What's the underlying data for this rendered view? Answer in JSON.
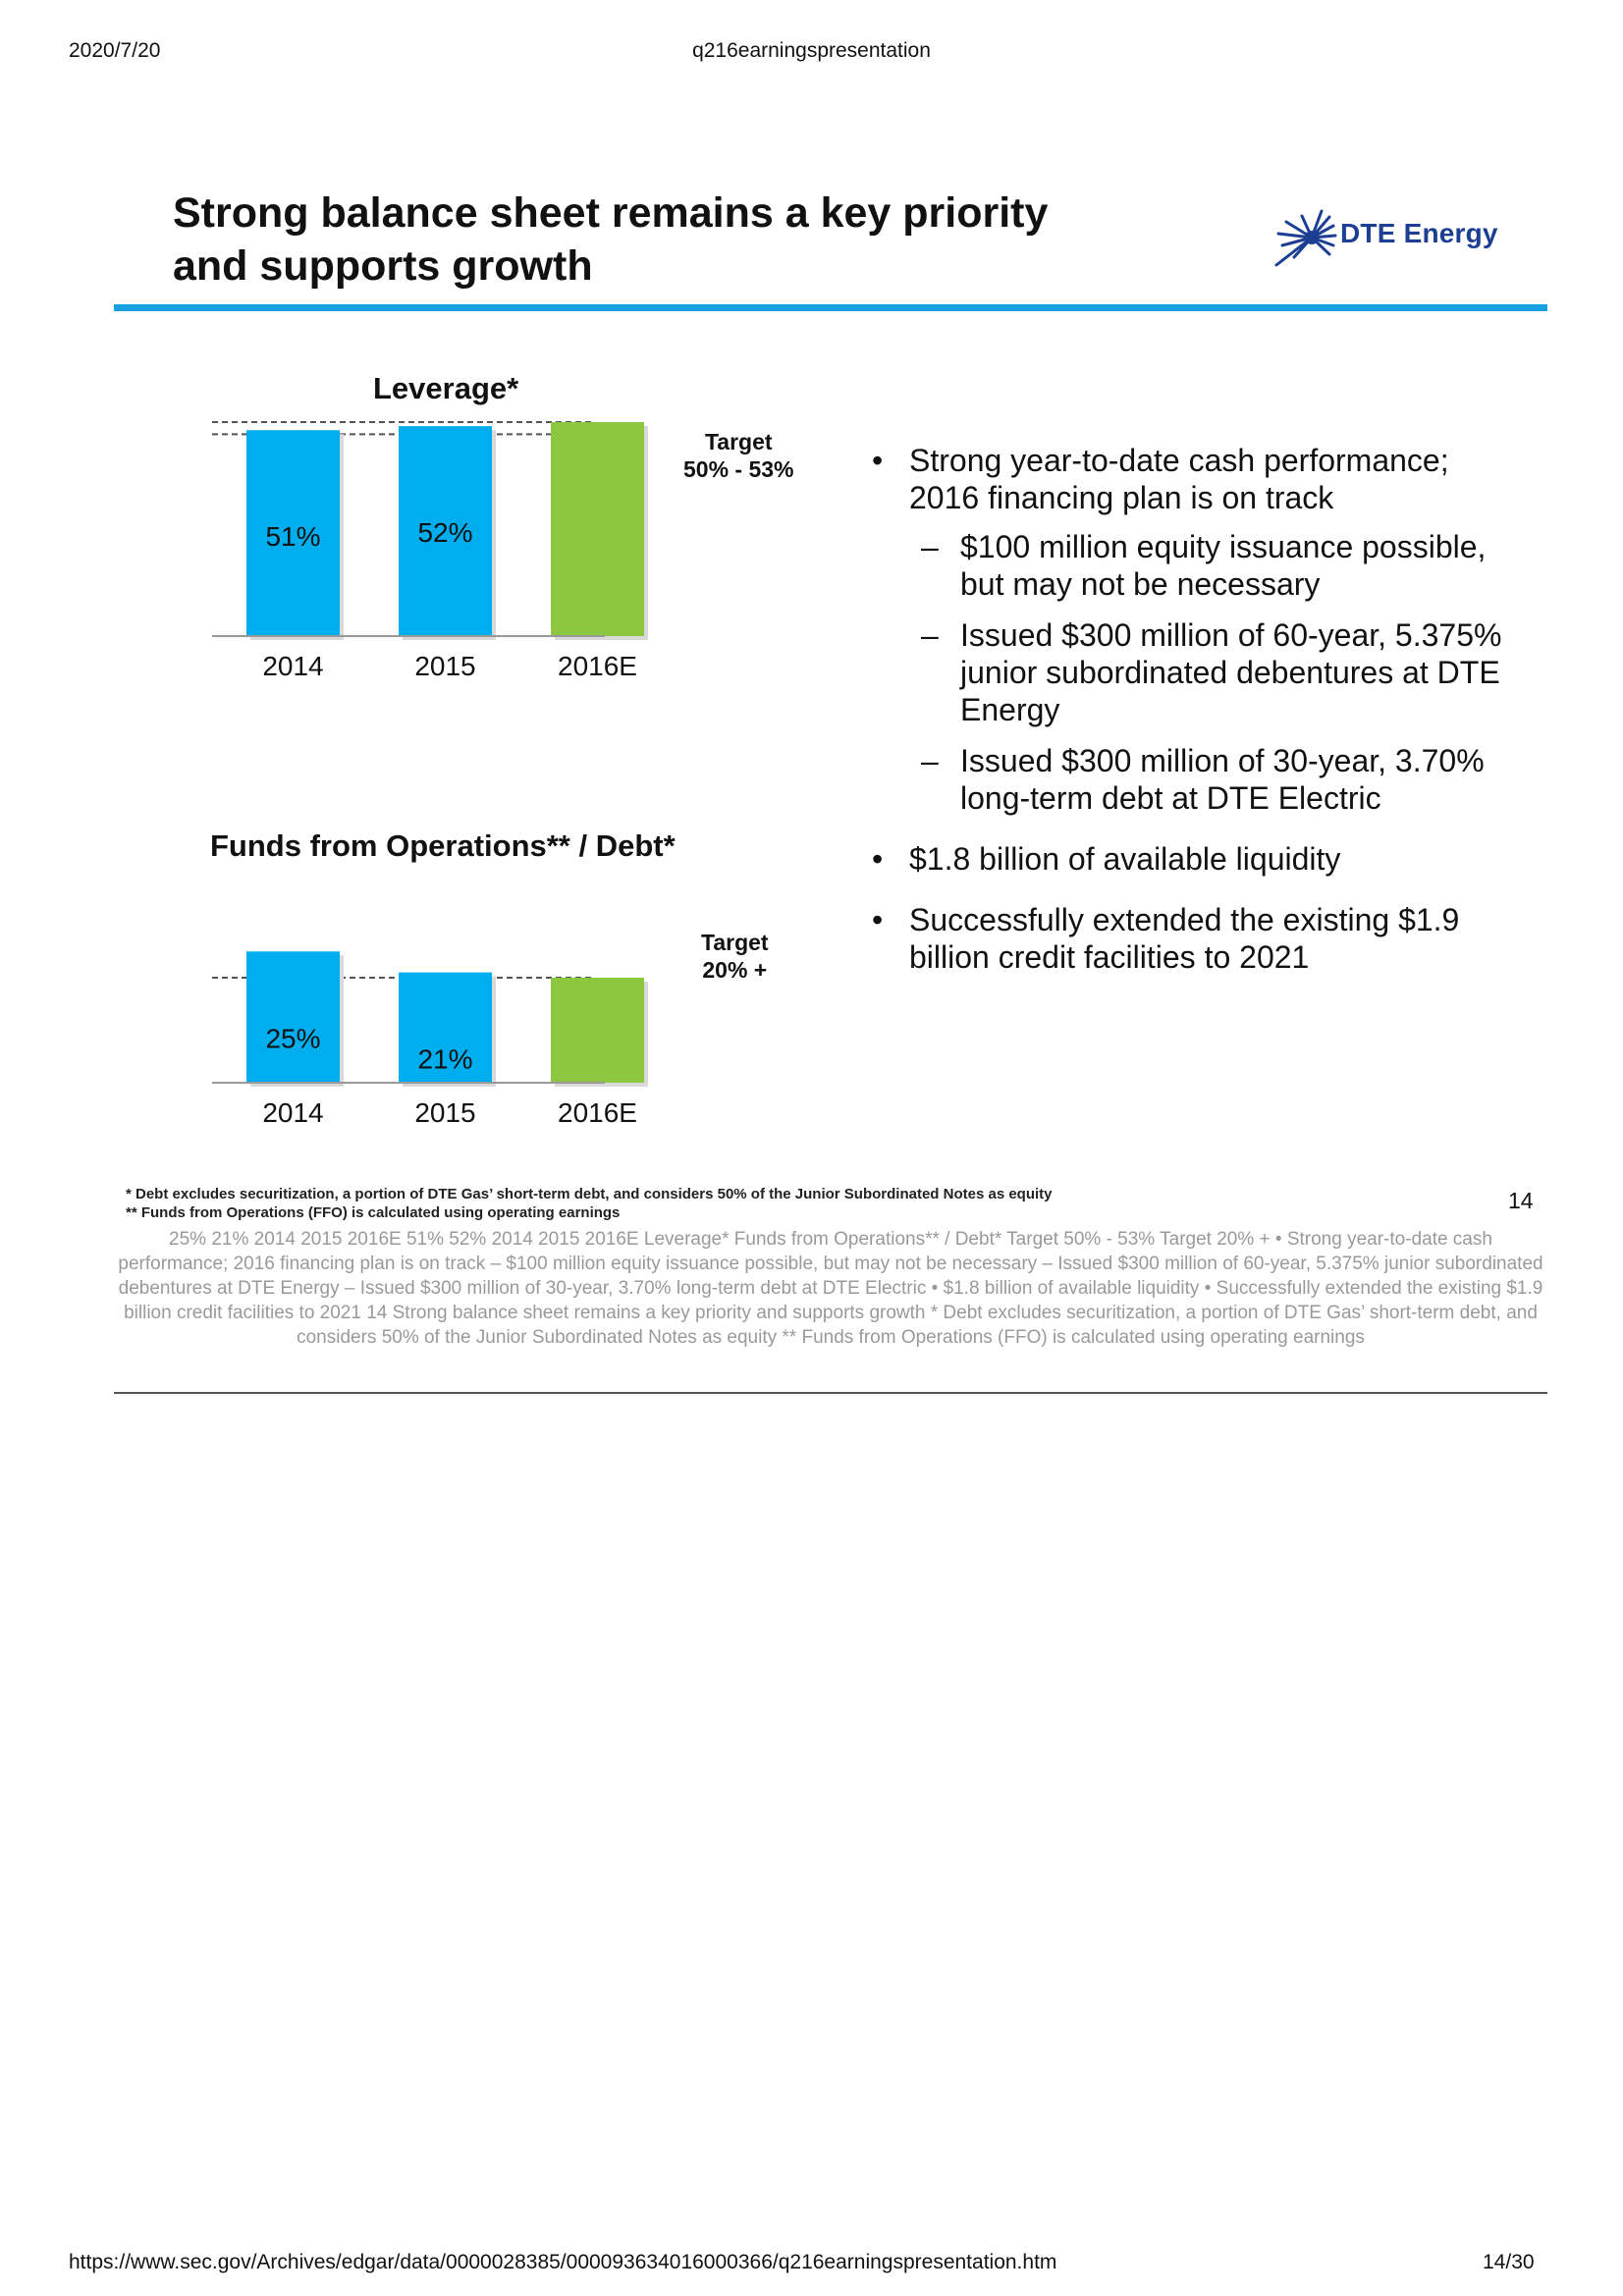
{
  "browser_header": {
    "date": "2020/7/20",
    "doc_title": "q216earningspresentation"
  },
  "slide": {
    "title": "Strong balance sheet remains a key priority\nand supports growth",
    "logo_text": "DTE Energy",
    "slide_number": "14",
    "bullets": [
      {
        "text": "Strong year-to-date cash performance; 2016 financing plan is on track",
        "sub": [
          "$100 million equity issuance possible, but may not be necessary",
          "Issued $300 million of 60-year, 5.375% junior subordinated debentures at DTE Energy",
          "Issued $300 million of 30-year, 3.70% long-term debt at DTE Electric"
        ]
      },
      {
        "text": "$1.8 billion of available liquidity",
        "sub": []
      },
      {
        "text": "Successfully extended the existing $1.9 billion credit facilities to 2021",
        "sub": []
      }
    ],
    "footnotes": [
      "*  Debt excludes securitization, a portion of DTE Gas’ short-term debt, and considers 50% of the Junior Subordinated Notes as equity",
      "** Funds from Operations (FFO) is calculated using operating earnings"
    ]
  },
  "chart_data": [
    {
      "type": "bar",
      "title": "Leverage*",
      "categories": [
        "2014",
        "2015",
        "2016E"
      ],
      "values": [
        51,
        52,
        null
      ],
      "labels": [
        "51%",
        "52%",
        ""
      ],
      "target_text": "Target\n50% - 53%",
      "target_range": [
        50,
        53
      ],
      "colors": [
        "#00aeef",
        "#00aeef",
        "#8dc63f"
      ]
    },
    {
      "type": "bar",
      "title": "Funds from Operations** / Debt*",
      "categories": [
        "2014",
        "2015",
        "2016E"
      ],
      "values": [
        25,
        21,
        null
      ],
      "labels": [
        "25%",
        "21%",
        ""
      ],
      "target_text": "Target\n20% +",
      "target_value": 20,
      "colors": [
        "#00aeef",
        "#00aeef",
        "#8dc63f"
      ]
    }
  ],
  "alt_text": "25%  21%  2014 2015 2016E 51% 52%  2014 2015 2016E Leverage*  Funds from Operations** / Debt*  Target  50% - 53%  Target  20% +  • Strong year-to-date cash performance;  2016 financing plan is on track  – $100 million equity issuance  possible, but may not be necessary  – Issued $300 million of 60-year,  5.375% junior subordinated  debentures at DTE Energy  – Issued $300 million of 30-year,  3.70% long-term debt at DTE Electric  • $1.8 billion of available liquidity  • Successfully extended the existing  $1.9 billion credit facilities to 2021  14  Strong balance sheet remains a key priority  and supports growth  * Debt excludes securitization, a portion of DTE Gas’    short-term debt, and considers 50% of the Junior Subordinated Notes as equity  ** Funds from Operations (FFO) is calculated using operating earnings",
  "browser_footer": {
    "url": "https://www.sec.gov/Archives/edgar/data/0000028385/000093634016000366/q216earningspresentation.htm",
    "page": "14/30"
  }
}
